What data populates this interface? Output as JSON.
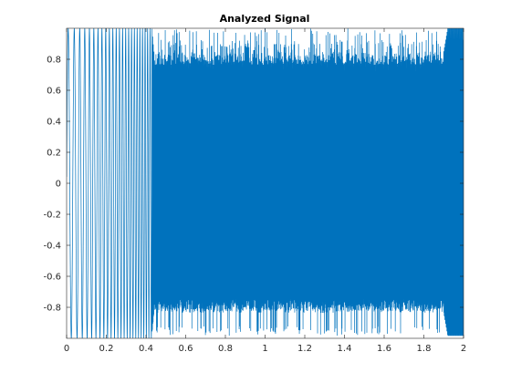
{
  "chart_data": {
    "type": "line",
    "title": "Analyzed Signal",
    "xlabel": "",
    "ylabel": "",
    "xlim": [
      0,
      2
    ],
    "ylim": [
      -1,
      1
    ],
    "xticks": [
      0,
      0.2,
      0.4,
      0.6,
      0.8,
      1,
      1.2,
      1.4,
      1.6,
      1.8,
      2
    ],
    "xtick_labels": [
      "0",
      "0.2",
      "0.4",
      "0.6",
      "0.8",
      "1",
      "1.2",
      "1.4",
      "1.6",
      "1.8",
      "2"
    ],
    "yticks": [
      -0.8,
      -0.6,
      -0.4,
      -0.2,
      0,
      0.2,
      0.4,
      0.6,
      0.8
    ],
    "ytick_labels": [
      "-0.8",
      "-0.6",
      "-0.4",
      "-0.2",
      "0",
      "0.2",
      "0.4",
      "0.6",
      "0.8"
    ],
    "grid": false,
    "legend": "none",
    "series": [
      {
        "color": "#0072BD",
        "description_of_shape": "dense oscillation filling [-1,1]; sparse sinusoid for x<0.43, dense block from x≈0.43 to 2 with spikes to ±1",
        "envelope": {
          "x": [
            0,
            0.43,
            0.44,
            1.9,
            1.92,
            2
          ],
          "amplitude": [
            1.0,
            1.0,
            0.85,
            0.85,
            1.0,
            1.0
          ]
        }
      }
    ]
  }
}
